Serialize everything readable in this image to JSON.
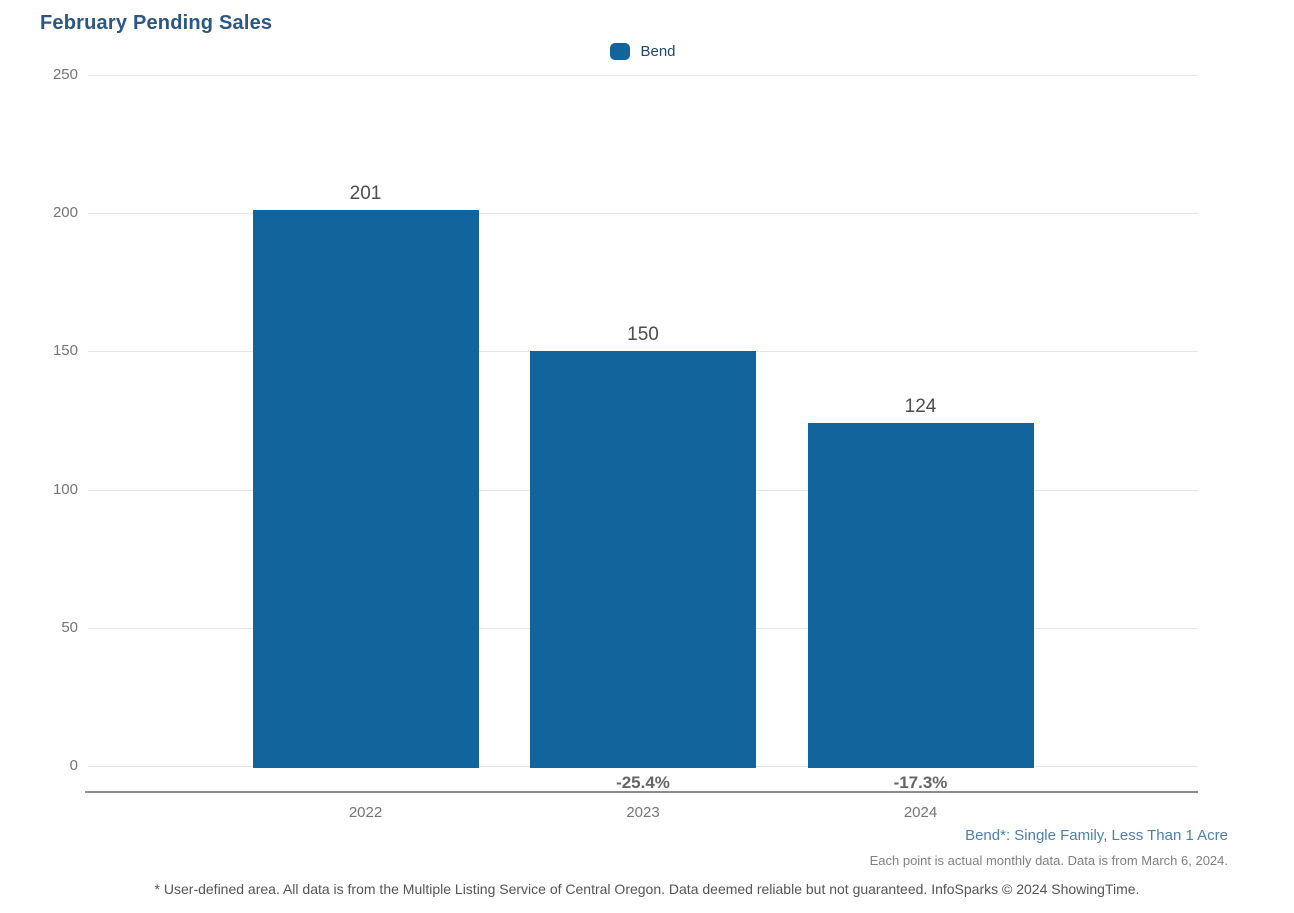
{
  "title": "February Pending Sales",
  "legend": {
    "items": [
      {
        "label": "Bend",
        "color": "#12659c"
      }
    ]
  },
  "chart_data": {
    "type": "bar",
    "title": "February Pending Sales",
    "categories": [
      "2022",
      "2023",
      "2024"
    ],
    "series": [
      {
        "name": "Bend",
        "values": [
          201,
          150,
          124
        ],
        "color": "#12659c"
      }
    ],
    "value_labels": [
      "201",
      "150",
      "124"
    ],
    "pct_change_labels": [
      "",
      "-25.4%",
      "-17.3%"
    ],
    "xlabel": "",
    "ylabel": "",
    "ylim": [
      0,
      250
    ],
    "yticks": [
      0,
      50,
      100,
      150,
      200,
      250
    ],
    "grid": "horizontal",
    "legend_position": "top-center"
  },
  "footnotes": {
    "series_definition": "Bend*: Single Family, Less Than 1 Acre",
    "data_note": "Each point is actual monthly data. Data is from March 6, 2024.",
    "disclaimer": "* User-defined area. All data is from the Multiple Listing Service of Central Oregon. Data deemed reliable but not guaranteed. InfoSparks © 2024 ShowingTime."
  },
  "colors": {
    "bar": "#12659c",
    "title": "#2a5784",
    "legend_text": "#25476a",
    "gridline": "#e7e7e7",
    "axis_line": "#8c8c8c",
    "tick_text": "#757575",
    "value_label": "#4d4d4d",
    "pct_label": "#666666",
    "footnote_blue": "#4d7eb4",
    "footnote_gray": "#808080",
    "disclaimer": "#555555"
  }
}
